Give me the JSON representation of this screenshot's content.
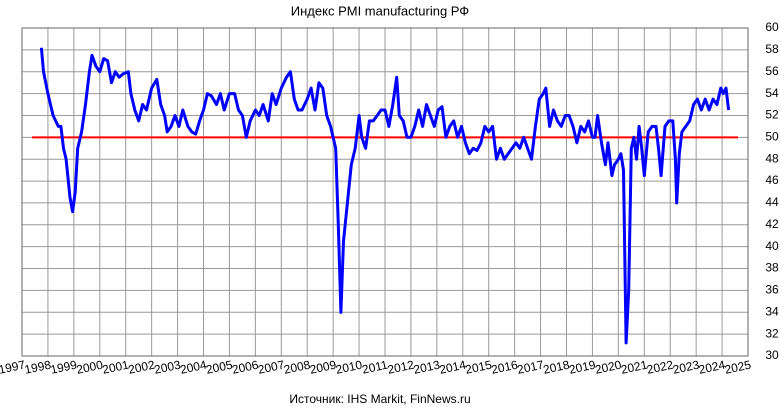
{
  "chart_data": {
    "type": "line",
    "title": "Индекс PMI manufacturing РФ",
    "source": "Источник: IHS Markit,  FinNews.ru",
    "x": [
      1997.75,
      1997.83,
      1998.0,
      1998.2,
      1998.4,
      1998.5,
      1998.6,
      1998.7,
      1998.85,
      1998.95,
      1999.05,
      1999.15,
      1999.3,
      1999.45,
      1999.6,
      1999.7,
      1999.85,
      2000.0,
      2000.15,
      2000.3,
      2000.45,
      2000.6,
      2000.75,
      2000.9,
      2001.1,
      2001.2,
      2001.35,
      2001.5,
      2001.65,
      2001.8,
      2002.0,
      2002.2,
      2002.35,
      2002.5,
      2002.6,
      2002.75,
      2002.9,
      2003.05,
      2003.2,
      2003.4,
      2003.55,
      2003.7,
      2003.85,
      2004.0,
      2004.15,
      2004.3,
      2004.5,
      2004.65,
      2004.8,
      2005.0,
      2005.2,
      2005.35,
      2005.5,
      2005.65,
      2005.8,
      2006.0,
      2006.15,
      2006.3,
      2006.5,
      2006.65,
      2006.8,
      2007.0,
      2007.2,
      2007.35,
      2007.5,
      2007.65,
      2007.8,
      2008.0,
      2008.15,
      2008.3,
      2008.45,
      2008.6,
      2008.75,
      2008.9,
      2009.0,
      2009.1,
      2009.2,
      2009.3,
      2009.4,
      2009.55,
      2009.7,
      2009.85,
      2010.0,
      2010.1,
      2010.25,
      2010.4,
      2010.55,
      2010.7,
      2010.85,
      2011.0,
      2011.15,
      2011.3,
      2011.45,
      2011.55,
      2011.7,
      2011.85,
      2012.0,
      2012.15,
      2012.3,
      2012.45,
      2012.6,
      2012.75,
      2012.9,
      2013.05,
      2013.2,
      2013.35,
      2013.5,
      2013.65,
      2013.8,
      2013.95,
      2014.1,
      2014.25,
      2014.4,
      2014.55,
      2014.7,
      2014.85,
      2015.0,
      2015.15,
      2015.3,
      2015.45,
      2015.6,
      2015.75,
      2015.9,
      2016.05,
      2016.2,
      2016.35,
      2016.5,
      2016.65,
      2016.8,
      2016.95,
      2017.1,
      2017.2,
      2017.35,
      2017.5,
      2017.65,
      2017.8,
      2017.95,
      2018.1,
      2018.25,
      2018.4,
      2018.55,
      2018.7,
      2018.85,
      2019.0,
      2019.1,
      2019.2,
      2019.35,
      2019.5,
      2019.6,
      2019.75,
      2019.85,
      2020.0,
      2020.1,
      2020.2,
      2020.3,
      2020.4,
      2020.5,
      2020.6,
      2020.7,
      2020.8,
      2020.9,
      2021.0,
      2021.15,
      2021.3,
      2021.45,
      2021.55,
      2021.65,
      2021.8,
      2021.95,
      2022.1,
      2022.2,
      2022.25,
      2022.35,
      2022.45,
      2022.6,
      2022.75,
      2022.9,
      2023.05,
      2023.2,
      2023.35,
      2023.5,
      2023.65,
      2023.8,
      2023.95,
      2024.05,
      2024.15,
      2024.25
    ],
    "series": [
      {
        "name": "PMI",
        "color": "#0000ff",
        "values": [
          58.2,
          56,
          54,
          52,
          51,
          51,
          49,
          48,
          44.5,
          43.2,
          45,
          49,
          50.5,
          53,
          56,
          57.5,
          56.5,
          56,
          57.2,
          57,
          55,
          56,
          55.5,
          55.8,
          56,
          54,
          52.5,
          51.5,
          53,
          52.5,
          54.5,
          55.3,
          53,
          52,
          50.5,
          51,
          52,
          51,
          52.5,
          51,
          50.5,
          50.3,
          51.5,
          52.5,
          54,
          53.8,
          53,
          54,
          52.5,
          54,
          54,
          52.5,
          52,
          50,
          51.5,
          52.5,
          52,
          53,
          51.5,
          54,
          53,
          54.5,
          55.5,
          56,
          53.5,
          52.5,
          52.5,
          53.5,
          54.5,
          52.5,
          55,
          54.5,
          52,
          51,
          50,
          49,
          42,
          34,
          40.5,
          44,
          47.5,
          49,
          52,
          50,
          49,
          51.5,
          51.5,
          52,
          52.5,
          52.5,
          51,
          53,
          55.5,
          52,
          51.5,
          50,
          50,
          51,
          52.5,
          51,
          53,
          52,
          51,
          52.5,
          52.8,
          50,
          51,
          51.5,
          50,
          51,
          49.5,
          48.5,
          49,
          48.8,
          49.5,
          51,
          50.5,
          51,
          48,
          49,
          48,
          48.5,
          49,
          49.5,
          49,
          50,
          49,
          48,
          51,
          53.5,
          54,
          54.5,
          51,
          52.5,
          51.5,
          51,
          52,
          52,
          51,
          49.5,
          51,
          50.5,
          51.5,
          50,
          50,
          52,
          49.5,
          47.5,
          49.5,
          46.5,
          47.5,
          48,
          48.5,
          47,
          31.2,
          36,
          49,
          50,
          48,
          51,
          49,
          46.5,
          50.5,
          51,
          51,
          49,
          46.5,
          51,
          51.5,
          51.5,
          48,
          44,
          48.5,
          50.5,
          51,
          51.5,
          53,
          53.5,
          52.5,
          53.5,
          52.5,
          53.5,
          53,
          54.5,
          54,
          54.5,
          52.5
        ]
      }
    ],
    "reference_line": {
      "value": 50,
      "color": "#ff0000"
    },
    "xlim": [
      1997,
      2025
    ],
    "xticks": [
      1997,
      1998,
      1999,
      2000,
      2001,
      2002,
      2003,
      2004,
      2005,
      2006,
      2007,
      2008,
      2009,
      2010,
      2011,
      2012,
      2013,
      2014,
      2015,
      2016,
      2017,
      2018,
      2019,
      2020,
      2021,
      2022,
      2023,
      2024,
      2025
    ],
    "ylim": [
      30,
      60
    ],
    "yticks": [
      30,
      32,
      34,
      36,
      38,
      40,
      42,
      44,
      46,
      48,
      50,
      52,
      54,
      56,
      58,
      60
    ],
    "grid": true
  }
}
